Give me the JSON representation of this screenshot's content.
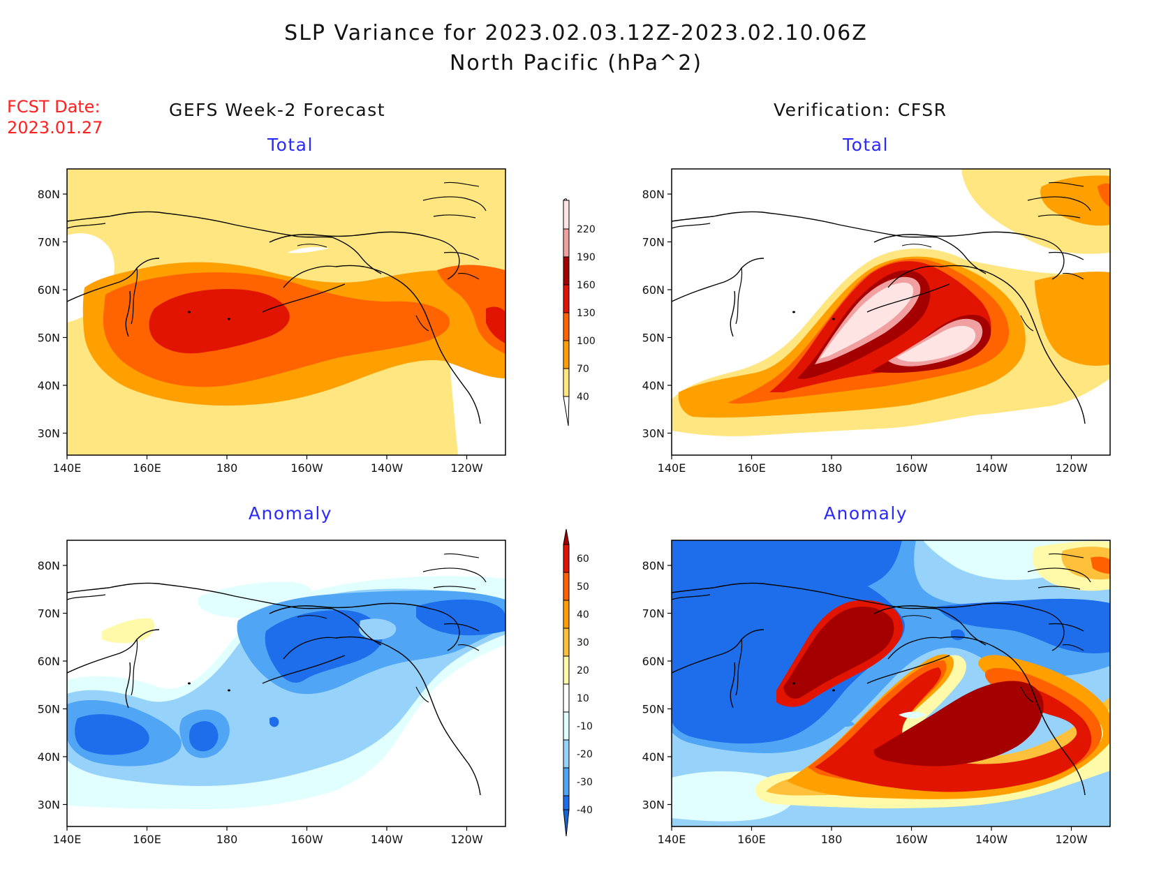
{
  "title": {
    "line1": "SLP Variance for 2023.02.03.12Z-2023.02.10.06Z",
    "line2": "North Pacific (hPa^2)"
  },
  "fcst": {
    "label": "FCST Date:",
    "date": "2023.01.27"
  },
  "columns": {
    "left": "GEFS Week-2 Forecast",
    "right": "Verification: CFSR"
  },
  "panel_titles": {
    "total": "Total",
    "anomaly": "Anomaly"
  },
  "axes": {
    "lat_labels": [
      "80N",
      "70N",
      "60N",
      "50N",
      "40N",
      "30N"
    ],
    "lon_labels": [
      "140E",
      "160E",
      "180",
      "160W",
      "140W",
      "120W"
    ]
  },
  "colorbars": {
    "total": {
      "levels": [
        "40",
        "70",
        "100",
        "130",
        "160",
        "190",
        "220"
      ]
    },
    "anomaly": {
      "levels": [
        "-40",
        "-30",
        "-20",
        "-10",
        "10",
        "20",
        "30",
        "40",
        "50",
        "60"
      ]
    }
  },
  "colors": {
    "total_shades": [
      "#ffffff",
      "#ffe680",
      "#ffa000",
      "#ff6400",
      "#e01400",
      "#a50000",
      "#f0a0a0",
      "#ffe4e4"
    ],
    "anomaly_shades": [
      "#1464d2",
      "#1e6eeb",
      "#50a5f5",
      "#96d2fa",
      "#e1ffff",
      "#ffffff",
      "#fffaaa",
      "#ffc03c",
      "#ffa000",
      "#ff6000",
      "#e11400",
      "#a50000"
    ]
  }
}
